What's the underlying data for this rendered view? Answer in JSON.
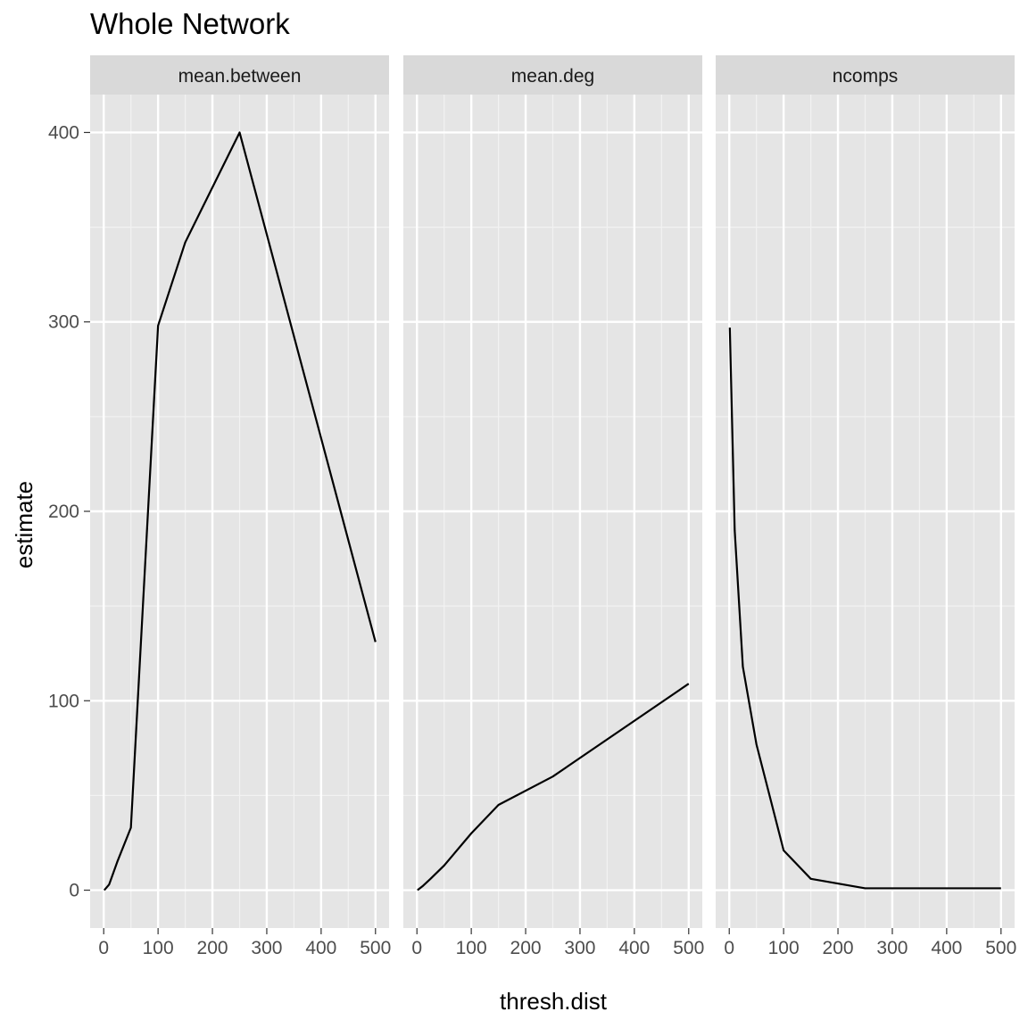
{
  "chart_data": {
    "type": "line",
    "title": "Whole Network",
    "xlabel": "thresh.dist",
    "ylabel": "estimate",
    "xlim": [
      -25,
      525
    ],
    "ylim": [
      -20,
      420
    ],
    "x_ticks": [
      0,
      100,
      200,
      300,
      400,
      500
    ],
    "y_ticks": [
      0,
      100,
      200,
      300,
      400
    ],
    "grid": true,
    "facets": [
      {
        "strip": "mean.between",
        "x": [
          1,
          10,
          25,
          50,
          100,
          150,
          250,
          500
        ],
        "y": [
          0,
          3,
          15,
          33,
          298,
          342,
          400,
          131
        ]
      },
      {
        "strip": "mean.deg",
        "x": [
          1,
          10,
          25,
          50,
          100,
          150,
          250,
          500
        ],
        "y": [
          0,
          2,
          6,
          13,
          30,
          45,
          60,
          109
        ]
      },
      {
        "strip": "ncomps",
        "x": [
          1,
          10,
          25,
          50,
          100,
          150,
          250,
          500
        ],
        "y": [
          297,
          190,
          118,
          77,
          21,
          6,
          1,
          1
        ]
      }
    ]
  },
  "colors": {
    "panel_background": "#e5e5e5",
    "grid_major": "#ffffff",
    "grid_minor": "#f2f2f2",
    "strip_background": "#d9d9d9",
    "line": "#000000",
    "tick_text": "#4d4d4d"
  }
}
